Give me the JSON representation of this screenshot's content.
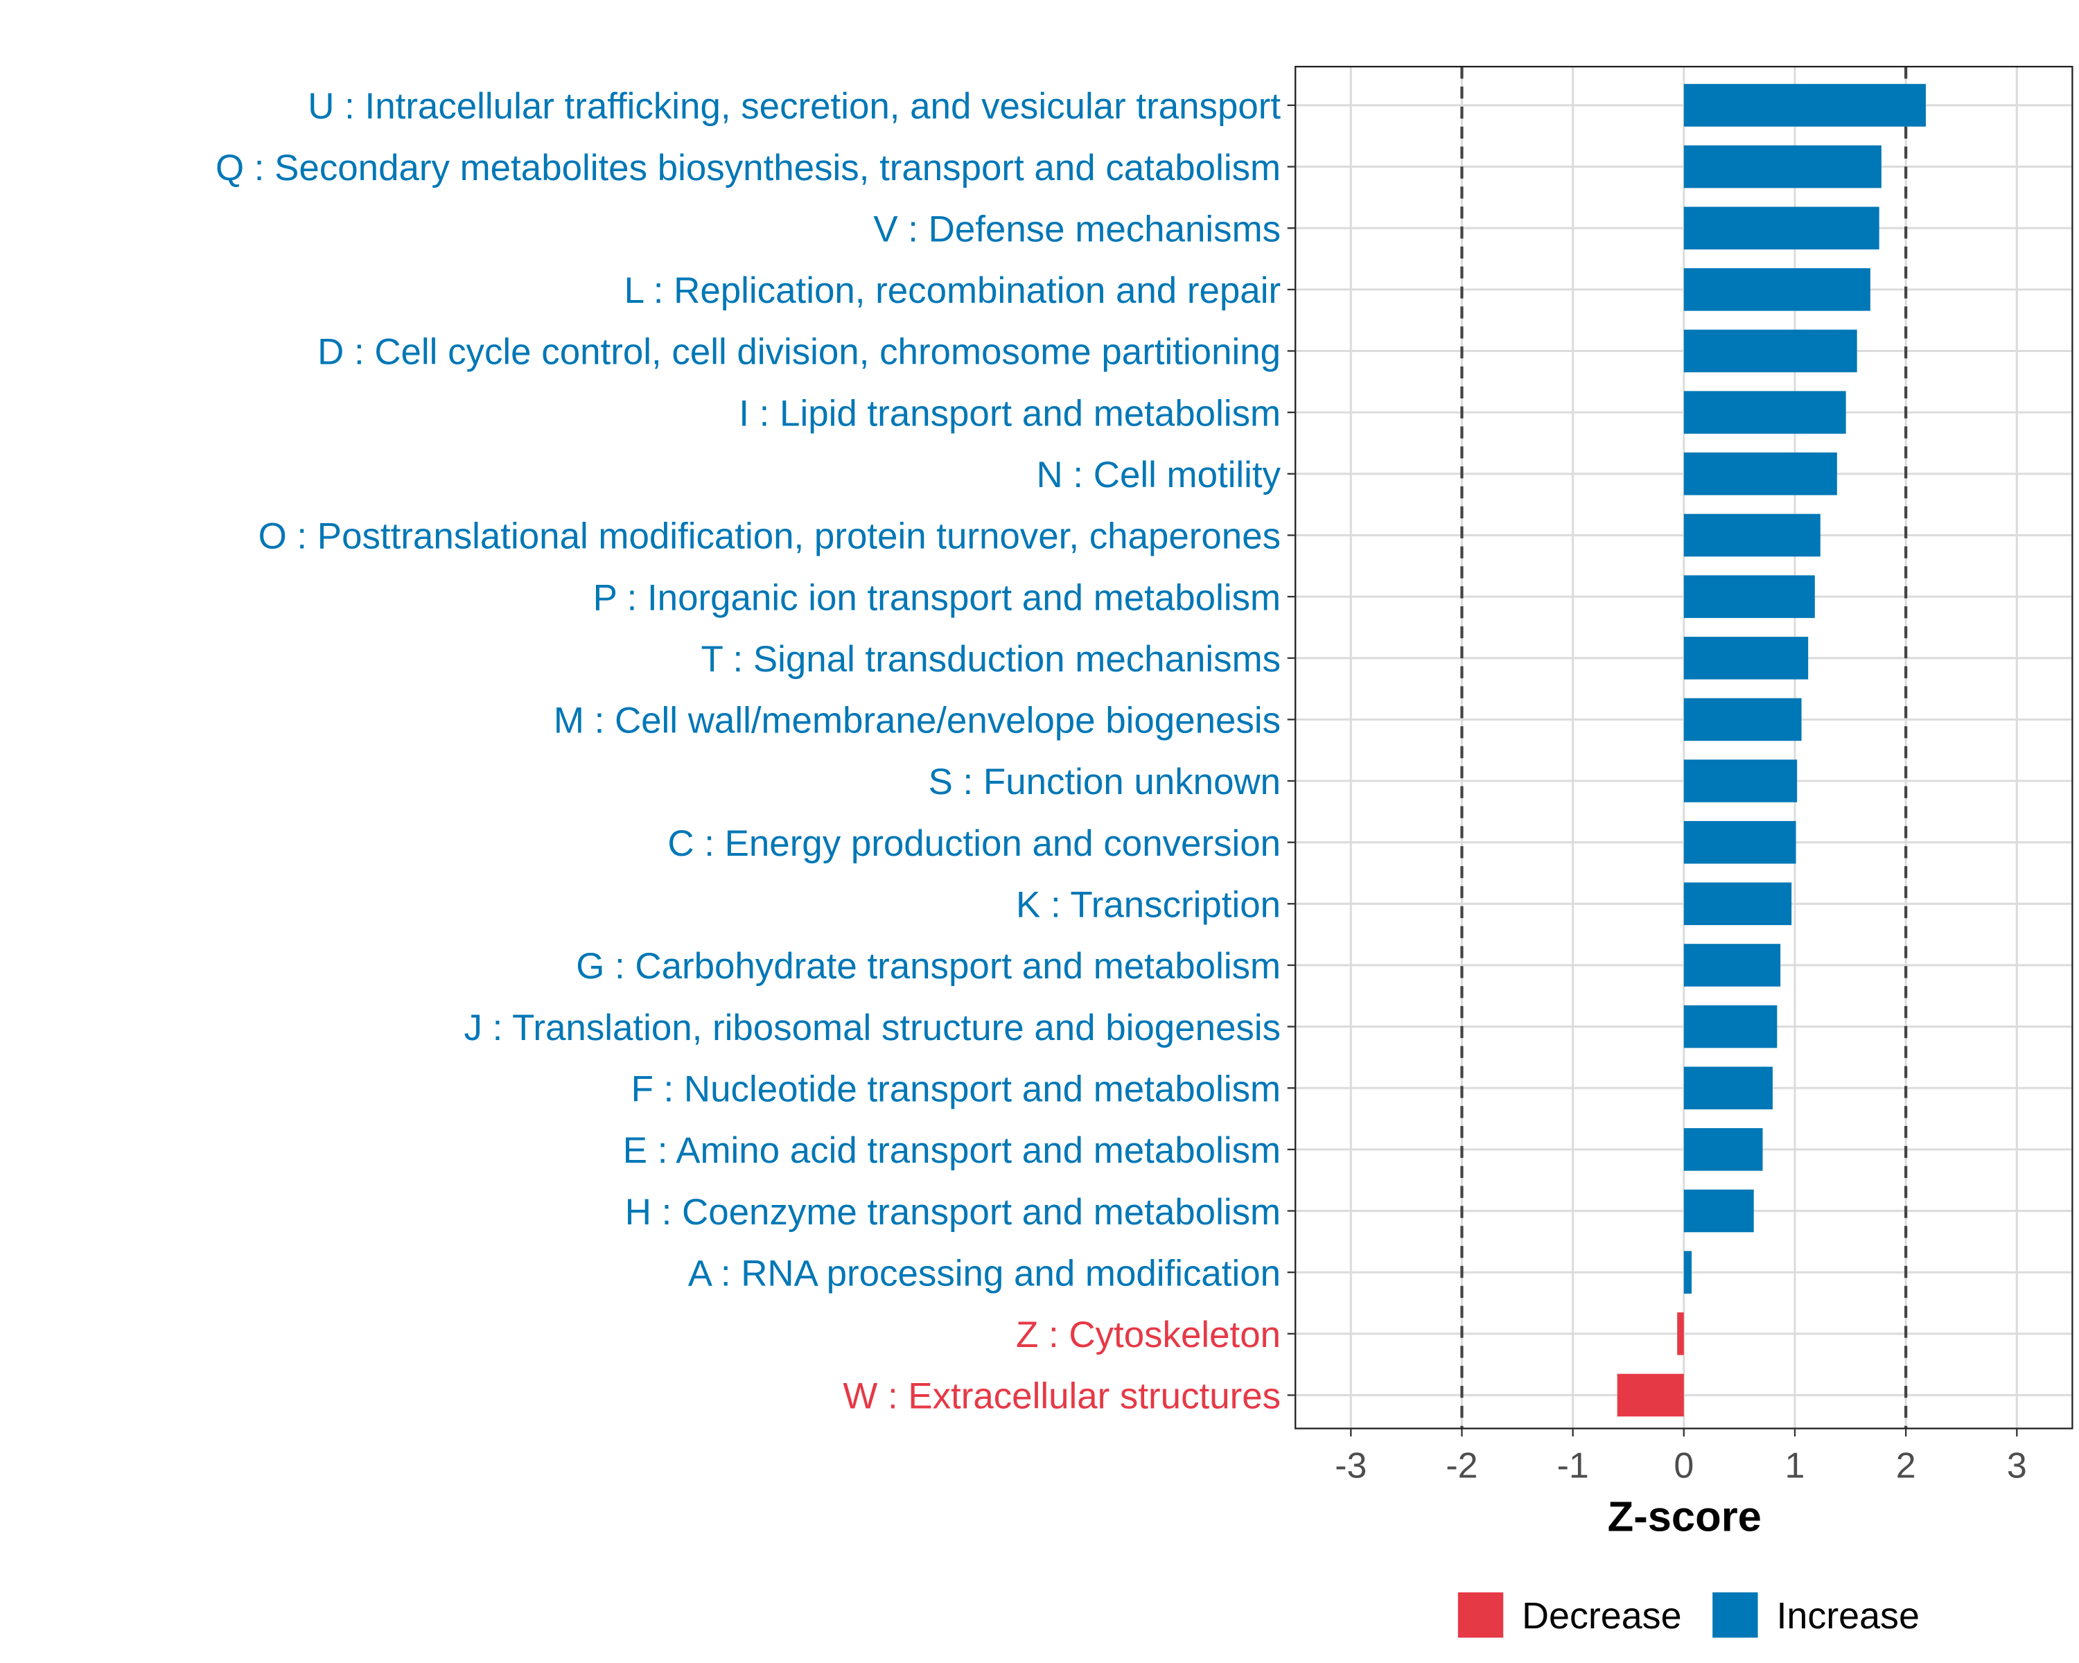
{
  "chart_data": {
    "type": "bar",
    "orientation": "horizontal",
    "title": "",
    "xlabel": "Z-score",
    "ylabel": "",
    "xlim": [
      -3.5,
      3.5
    ],
    "xticks": [
      -3,
      -2,
      -1,
      0,
      1,
      2,
      3
    ],
    "reference_lines": [
      -2,
      2
    ],
    "grid": true,
    "legend": {
      "placement": "bottom",
      "entries": [
        {
          "label": "Decrease",
          "color": "#E63946"
        },
        {
          "label": "Increase",
          "color": "#0077B6"
        }
      ]
    },
    "categories": [
      "U : Intracellular trafficking, secretion, and vesicular transport",
      "Q : Secondary metabolites biosynthesis, transport and catabolism",
      "V : Defense mechanisms",
      "L : Replication, recombination and repair",
      "D : Cell cycle control, cell division, chromosome partitioning",
      "I : Lipid transport and metabolism",
      "N : Cell motility",
      "O : Posttranslational modification, protein turnover, chaperones",
      "P : Inorganic ion transport and metabolism",
      "T : Signal transduction mechanisms",
      "M : Cell wall/membrane/envelope biogenesis",
      "S : Function unknown",
      "C : Energy production and conversion",
      "K : Transcription",
      "G : Carbohydrate transport and metabolism",
      "J : Translation, ribosomal structure and biogenesis",
      "F : Nucleotide transport and metabolism",
      "E : Amino acid transport and metabolism",
      "H : Coenzyme transport and metabolism",
      "A : RNA processing and modification",
      "Z : Cytoskeleton",
      "W : Extracellular structures"
    ],
    "values": [
      2.18,
      1.78,
      1.76,
      1.68,
      1.56,
      1.46,
      1.38,
      1.23,
      1.18,
      1.12,
      1.06,
      1.02,
      1.01,
      0.97,
      0.87,
      0.84,
      0.8,
      0.71,
      0.63,
      0.07,
      -0.06,
      -0.6
    ]
  }
}
